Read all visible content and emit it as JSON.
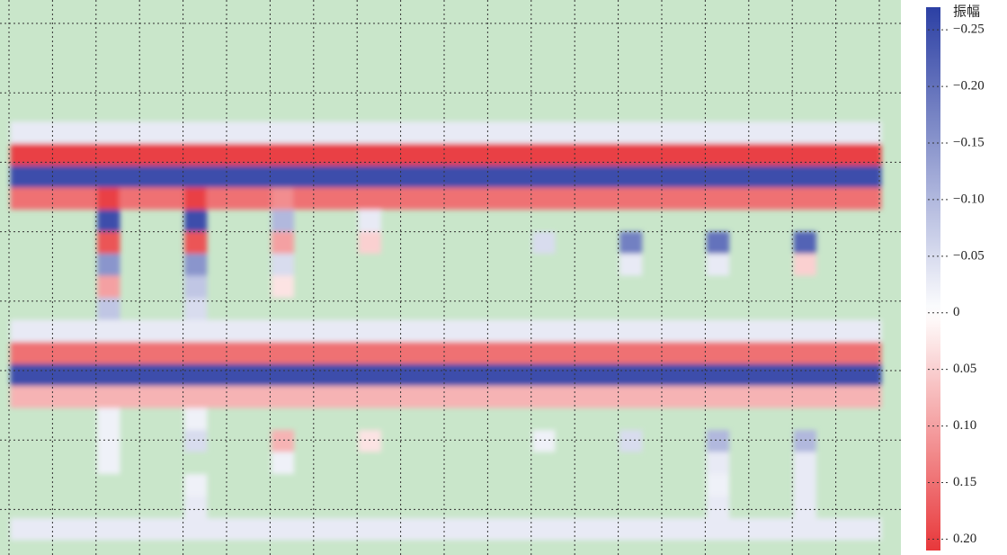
{
  "chart_data": {
    "type": "heatmap",
    "background": "#c9e6ca",
    "grid": true,
    "colors": {
      "negative": "#2c40a4",
      "zero": "#ffffff",
      "positive": "#e8383b"
    },
    "z": [
      [
        -0.03,
        -0.03,
        -0.03,
        -0.03,
        -0.03,
        -0.03,
        -0.03,
        -0.03,
        -0.03,
        -0.03,
        -0.03,
        -0.03,
        -0.03,
        -0.03,
        -0.03,
        -0.03,
        -0.03,
        -0.03,
        -0.03,
        -0.03,
        -0.03,
        -0.03,
        -0.03,
        -0.03,
        -0.03,
        -0.03,
        -0.03,
        -0.03,
        -0.03,
        -0.03,
        -0.03,
        -0.03,
        -0.03,
        -0.03,
        -0.03,
        -0.03,
        -0.03,
        -0.03,
        -0.03,
        -0.03
      ],
      [
        0.2,
        0.2,
        0.2,
        0.2,
        0.2,
        0.2,
        0.2,
        0.2,
        0.2,
        0.2,
        0.2,
        0.2,
        0.2,
        0.2,
        0.2,
        0.2,
        0.2,
        0.2,
        0.2,
        0.2,
        0.2,
        0.2,
        0.2,
        0.2,
        0.2,
        0.2,
        0.2,
        0.2,
        0.2,
        0.2,
        0.2,
        0.2,
        0.2,
        0.2,
        0.2,
        0.2,
        0.2,
        0.2,
        0.2,
        0.2
      ],
      [
        -0.25,
        -0.25,
        -0.25,
        -0.25,
        -0.25,
        -0.25,
        -0.25,
        -0.25,
        -0.25,
        -0.25,
        -0.25,
        -0.25,
        -0.25,
        -0.25,
        -0.25,
        -0.25,
        -0.25,
        -0.25,
        -0.25,
        -0.25,
        -0.25,
        -0.25,
        -0.25,
        -0.25,
        -0.25,
        -0.25,
        -0.25,
        -0.25,
        -0.25,
        -0.25,
        -0.25,
        -0.25,
        -0.25,
        -0.25,
        -0.25,
        -0.25,
        -0.25,
        -0.25,
        -0.25,
        -0.25
      ],
      [
        0.15,
        0.15,
        0.15,
        0.15,
        0.2,
        0.15,
        0.15,
        0.15,
        0.2,
        0.15,
        0.15,
        0.15,
        0.12,
        0.15,
        0.15,
        0.15,
        0.15,
        0.15,
        0.15,
        0.15,
        0.15,
        0.15,
        0.15,
        0.15,
        0.15,
        0.15,
        0.15,
        0.15,
        0.15,
        0.15,
        0.15,
        0.15,
        0.15,
        0.15,
        0.15,
        0.15,
        0.15,
        0.15,
        0.15,
        0.15
      ],
      [
        null,
        null,
        null,
        null,
        -0.25,
        null,
        null,
        null,
        -0.25,
        null,
        null,
        null,
        -0.1,
        null,
        null,
        null,
        -0.03,
        null,
        null,
        null,
        null,
        null,
        null,
        null,
        null,
        null,
        null,
        null,
        null,
        null,
        null,
        null,
        null,
        null,
        null,
        null,
        null,
        null,
        null,
        null
      ],
      [
        null,
        null,
        null,
        null,
        0.18,
        null,
        null,
        null,
        0.18,
        null,
        null,
        null,
        0.1,
        null,
        null,
        null,
        0.05,
        null,
        null,
        null,
        null,
        null,
        null,
        null,
        -0.05,
        null,
        null,
        null,
        -0.18,
        null,
        null,
        null,
        -0.2,
        null,
        null,
        null,
        -0.22,
        null,
        null,
        null
      ],
      [
        null,
        null,
        null,
        null,
        -0.15,
        null,
        null,
        null,
        -0.15,
        null,
        null,
        null,
        -0.05,
        null,
        null,
        null,
        null,
        null,
        null,
        null,
        null,
        null,
        null,
        null,
        null,
        null,
        null,
        null,
        -0.03,
        null,
        null,
        null,
        -0.03,
        null,
        null,
        null,
        0.05,
        null,
        null,
        null
      ],
      [
        null,
        null,
        null,
        null,
        0.1,
        null,
        null,
        null,
        -0.08,
        null,
        null,
        null,
        0.03,
        null,
        null,
        null,
        null,
        null,
        null,
        null,
        null,
        null,
        null,
        null,
        null,
        null,
        null,
        null,
        null,
        null,
        null,
        null,
        null,
        null,
        null,
        null,
        null,
        null,
        null,
        null
      ],
      [
        null,
        null,
        null,
        null,
        -0.08,
        null,
        null,
        null,
        -0.05,
        null,
        null,
        null,
        null,
        null,
        null,
        null,
        null,
        null,
        null,
        null,
        null,
        null,
        null,
        null,
        null,
        null,
        null,
        null,
        null,
        null,
        null,
        null,
        null,
        null,
        null,
        null,
        null,
        null,
        null,
        null
      ],
      [
        -0.03,
        -0.03,
        -0.03,
        -0.03,
        -0.03,
        -0.03,
        -0.03,
        -0.03,
        -0.03,
        -0.03,
        -0.03,
        -0.03,
        -0.03,
        -0.03,
        -0.03,
        -0.03,
        -0.03,
        -0.03,
        -0.03,
        -0.03,
        -0.03,
        -0.03,
        -0.03,
        -0.03,
        -0.03,
        -0.03,
        -0.03,
        -0.03,
        -0.03,
        -0.03,
        -0.03,
        -0.03,
        -0.03,
        -0.03,
        -0.03,
        -0.03,
        -0.03,
        -0.03,
        -0.03,
        -0.03
      ],
      [
        0.15,
        0.15,
        0.15,
        0.15,
        0.15,
        0.15,
        0.15,
        0.15,
        0.15,
        0.15,
        0.15,
        0.15,
        0.15,
        0.15,
        0.15,
        0.15,
        0.15,
        0.15,
        0.15,
        0.15,
        0.15,
        0.15,
        0.15,
        0.15,
        0.15,
        0.15,
        0.15,
        0.15,
        0.15,
        0.15,
        0.15,
        0.15,
        0.15,
        0.15,
        0.15,
        0.15,
        0.15,
        0.15,
        0.15,
        0.15
      ],
      [
        -0.25,
        -0.25,
        -0.25,
        -0.25,
        -0.25,
        -0.25,
        -0.25,
        -0.25,
        -0.25,
        -0.25,
        -0.25,
        -0.25,
        -0.25,
        -0.25,
        -0.25,
        -0.25,
        -0.25,
        -0.25,
        -0.25,
        -0.25,
        -0.25,
        -0.25,
        -0.25,
        -0.25,
        -0.25,
        -0.25,
        -0.25,
        -0.25,
        -0.25,
        -0.25,
        -0.25,
        -0.25,
        -0.25,
        -0.25,
        -0.25,
        -0.25,
        -0.25,
        -0.25,
        -0.25,
        -0.25
      ],
      [
        0.08,
        0.08,
        0.08,
        0.08,
        0.08,
        0.08,
        0.08,
        0.08,
        0.08,
        0.08,
        0.08,
        0.08,
        0.08,
        0.08,
        0.08,
        0.08,
        0.08,
        0.08,
        0.08,
        0.08,
        0.08,
        0.08,
        0.08,
        0.08,
        0.08,
        0.08,
        0.08,
        0.08,
        0.08,
        0.08,
        0.08,
        0.08,
        0.08,
        0.08,
        0.08,
        0.08,
        0.08,
        0.08,
        0.08,
        0.08
      ],
      [
        null,
        null,
        null,
        null,
        -0.02,
        null,
        null,
        null,
        -0.02,
        null,
        null,
        null,
        null,
        null,
        null,
        null,
        null,
        null,
        null,
        null,
        null,
        null,
        null,
        null,
        null,
        null,
        null,
        null,
        null,
        null,
        null,
        null,
        null,
        null,
        null,
        null,
        null,
        null,
        null,
        null
      ],
      [
        null,
        null,
        null,
        null,
        -0.02,
        null,
        null,
        null,
        -0.05,
        null,
        null,
        null,
        0.08,
        null,
        null,
        null,
        0.03,
        null,
        null,
        null,
        null,
        null,
        null,
        null,
        -0.02,
        null,
        null,
        null,
        -0.05,
        null,
        null,
        null,
        -0.1,
        null,
        null,
        null,
        -0.1,
        null,
        null,
        null
      ],
      [
        null,
        null,
        null,
        null,
        -0.02,
        null,
        null,
        null,
        null,
        null,
        null,
        null,
        -0.02,
        null,
        null,
        null,
        null,
        null,
        null,
        null,
        null,
        null,
        null,
        null,
        null,
        null,
        null,
        null,
        null,
        null,
        null,
        null,
        -0.03,
        null,
        null,
        null,
        -0.03,
        null,
        null,
        null
      ],
      [
        null,
        null,
        null,
        null,
        null,
        null,
        null,
        null,
        -0.02,
        null,
        null,
        null,
        null,
        null,
        null,
        null,
        null,
        null,
        null,
        null,
        null,
        null,
        null,
        null,
        null,
        null,
        null,
        null,
        null,
        null,
        null,
        null,
        -0.02,
        null,
        null,
        null,
        -0.03,
        null,
        null,
        null
      ],
      [
        null,
        null,
        null,
        null,
        null,
        null,
        null,
        null,
        -0.03,
        null,
        null,
        null,
        null,
        null,
        null,
        null,
        null,
        null,
        null,
        null,
        null,
        null,
        null,
        null,
        null,
        null,
        null,
        null,
        null,
        null,
        null,
        null,
        -0.03,
        null,
        null,
        null,
        -0.03,
        null,
        null,
        null
      ],
      [
        -0.03,
        -0.03,
        -0.03,
        -0.03,
        -0.03,
        -0.03,
        -0.03,
        -0.03,
        -0.03,
        -0.03,
        -0.03,
        -0.03,
        -0.03,
        -0.03,
        -0.03,
        -0.03,
        -0.03,
        -0.03,
        -0.03,
        -0.03,
        -0.03,
        -0.03,
        -0.03,
        -0.03,
        -0.03,
        -0.03,
        -0.03,
        -0.03,
        -0.03,
        -0.03,
        -0.03,
        -0.03,
        -0.03,
        -0.03,
        -0.03,
        -0.03,
        -0.03,
        -0.03,
        -0.03,
        -0.03
      ]
    ],
    "colorbar": {
      "title": "振幅",
      "clim": [
        -0.27,
        0.21
      ],
      "ticks": [
        {
          "value": -0.25,
          "label": "−0.25"
        },
        {
          "value": -0.2,
          "label": "−0.20"
        },
        {
          "value": -0.15,
          "label": "−0.15"
        },
        {
          "value": -0.1,
          "label": "−0.10"
        },
        {
          "value": -0.05,
          "label": "−0.05"
        },
        0,
        0.05,
        {
          "value": 0.1,
          "label": "0.10"
        },
        0.15,
        {
          "value": 0.2,
          "label": "0.20"
        }
      ]
    }
  }
}
